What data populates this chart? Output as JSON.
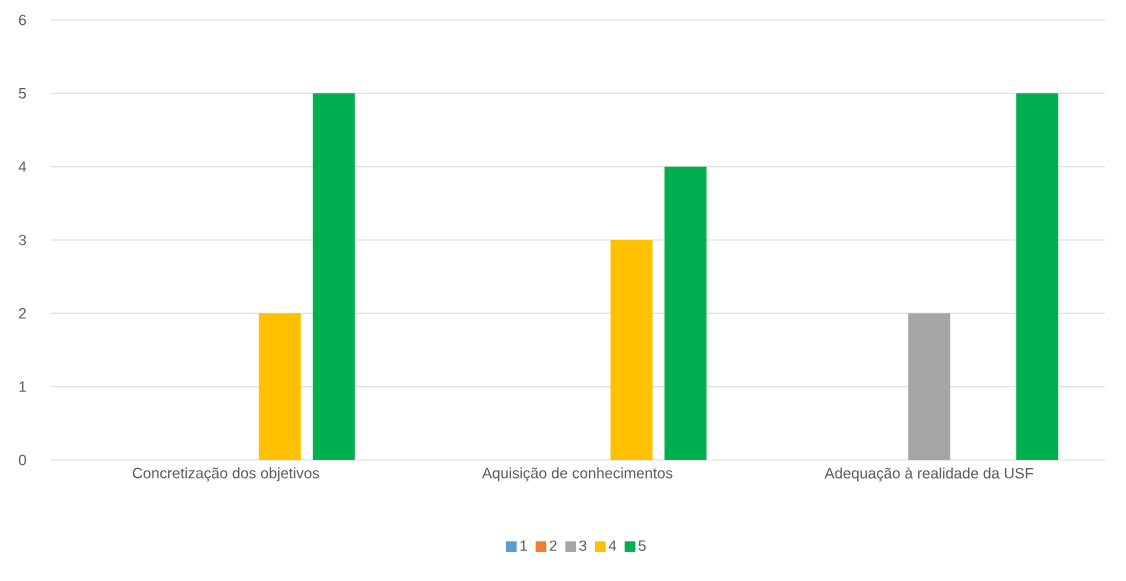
{
  "chart_data": {
    "type": "bar",
    "categories": [
      "Concretização dos objetivos",
      "Aquisição de conhecimentos",
      "Adequação à realidade da USF"
    ],
    "series": [
      {
        "name": "1",
        "color": "#5b9bd5",
        "values": [
          0,
          0,
          0
        ]
      },
      {
        "name": "2",
        "color": "#ed7d31",
        "values": [
          0,
          0,
          0
        ]
      },
      {
        "name": "3",
        "color": "#a5a5a5",
        "values": [
          0,
          0,
          2
        ]
      },
      {
        "name": "4",
        "color": "#ffc000",
        "values": [
          2,
          3,
          0
        ]
      },
      {
        "name": "5",
        "color": "#00b050",
        "values": [
          5,
          4,
          5
        ]
      }
    ],
    "ylim": [
      0,
      6
    ],
    "yticks": [
      0,
      1,
      2,
      3,
      4,
      5,
      6
    ],
    "grid": "y",
    "legend": "bottom"
  }
}
